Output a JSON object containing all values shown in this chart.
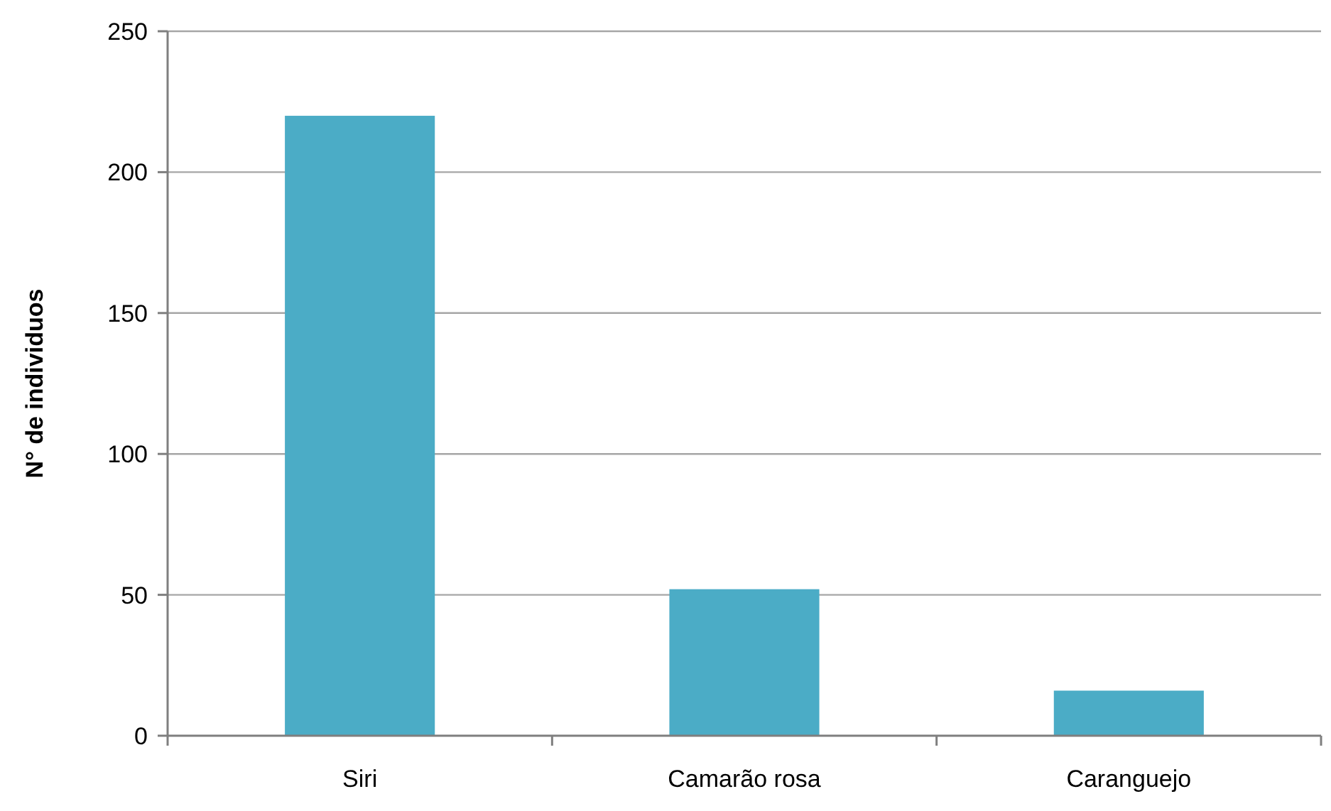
{
  "chart_data": {
    "type": "bar",
    "ylabel": "N° de individuos",
    "categories": [
      "Siri",
      "Camarão rosa",
      "Caranguejo"
    ],
    "values": [
      220,
      52,
      16
    ],
    "color": "#4bacc6",
    "ylim": [
      0,
      250
    ],
    "yticks": [
      0,
      50,
      100,
      150,
      200,
      250
    ],
    "grid": "y"
  }
}
